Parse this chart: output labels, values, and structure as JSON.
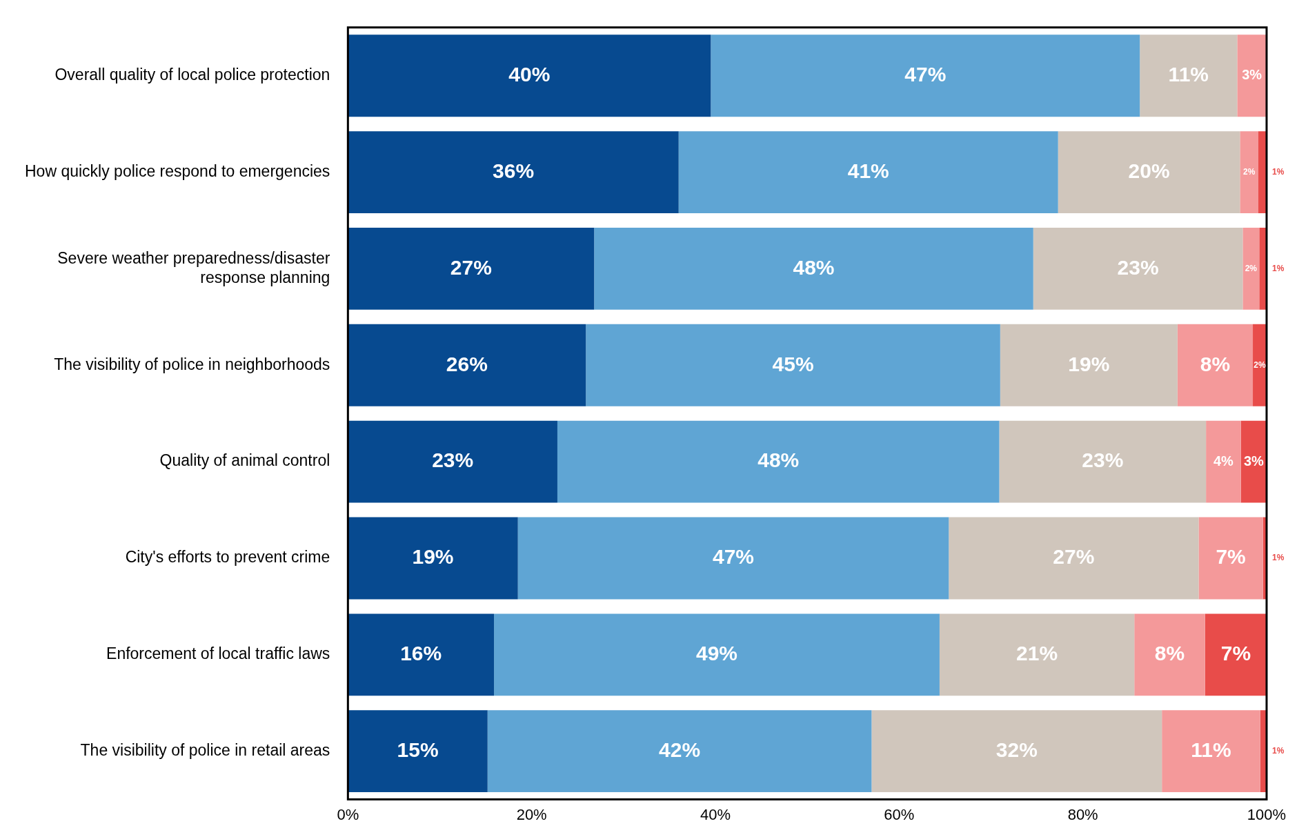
{
  "chart_data": {
    "type": "bar",
    "orientation": "horizontal",
    "stacked": true,
    "categories": [
      "Overall quality of local police protection",
      "How quickly police respond to emergencies",
      "Severe weather preparedness/disaster response planning",
      "The visibility of police in neighborhoods",
      "Quality of animal control",
      "City's efforts to prevent crime",
      "Enforcement of local traffic laws",
      "The visibility of police in retail areas"
    ],
    "series": [
      {
        "color": "#074a90",
        "values": [
          39.5,
          36.0,
          26.8,
          25.9,
          22.8,
          18.5,
          15.9,
          15.2
        ],
        "value_labels": [
          "40%",
          "36%",
          "27%",
          "26%",
          "23%",
          "19%",
          "16%",
          "15%"
        ]
      },
      {
        "color": "#5fa5d4",
        "values": [
          46.7,
          41.3,
          47.8,
          45.1,
          48.1,
          46.9,
          48.5,
          41.8
        ],
        "value_labels": [
          "47%",
          "41%",
          "48%",
          "45%",
          "48%",
          "47%",
          "49%",
          "42%"
        ]
      },
      {
        "color": "#d0c6bc",
        "values": [
          10.6,
          19.8,
          22.8,
          19.3,
          22.5,
          27.2,
          21.2,
          31.6
        ],
        "value_labels": [
          "11%",
          "20%",
          "23%",
          "19%",
          "23%",
          "27%",
          "21%",
          "32%"
        ]
      },
      {
        "color": "#f4999a",
        "values": [
          3.2,
          2.0,
          1.8,
          8.2,
          3.8,
          7.0,
          7.7,
          10.7
        ],
        "value_labels": [
          "3%",
          "2%",
          "2%",
          "8%",
          "4%",
          "7%",
          "8%",
          "11%"
        ]
      },
      {
        "color": "#e84c4a",
        "values": [
          null,
          0.9,
          0.8,
          1.5,
          2.8,
          0.5,
          6.7,
          0.7
        ],
        "value_labels": [
          null,
          "1%",
          "1%",
          "2%",
          "3%",
          "1%",
          "7%",
          "1%"
        ]
      }
    ],
    "xlim": [
      0,
      100
    ],
    "xticks": [
      {
        "value": 0,
        "label": "0%"
      },
      {
        "value": 20,
        "label": "20%"
      },
      {
        "value": 40,
        "label": "40%"
      },
      {
        "value": 60,
        "label": "60%"
      },
      {
        "value": 80,
        "label": "80%"
      },
      {
        "value": 100,
        "label": "100%"
      }
    ],
    "grid": false,
    "legend": false
  }
}
